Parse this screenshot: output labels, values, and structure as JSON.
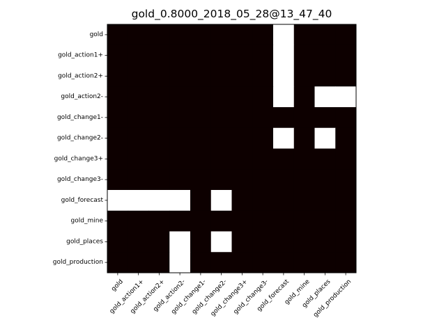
{
  "chart_data": {
    "type": "heatmap",
    "title": "gold_0.8000_2018_05_28@13_47_40",
    "xlabel": "",
    "ylabel": "",
    "x_labels": [
      "gold",
      "gold_action1+",
      "gold_action2+",
      "gold_action2-",
      "gold_change1-",
      "gold_change2-",
      "gold_change3+",
      "gold_change3-",
      "gold_forecast",
      "gold_mine",
      "gold_places",
      "gold_production"
    ],
    "y_labels": [
      "gold",
      "gold_action1+",
      "gold_action2+",
      "gold_action2-",
      "gold_change1-",
      "gold_change2-",
      "gold_change3+",
      "gold_change3-",
      "gold_forecast",
      "gold_mine",
      "gold_places",
      "gold_production"
    ],
    "values": [
      [
        0,
        0,
        0,
        0,
        0,
        0,
        0,
        0,
        1,
        0,
        0,
        0
      ],
      [
        0,
        0,
        0,
        0,
        0,
        0,
        0,
        0,
        1,
        0,
        0,
        0
      ],
      [
        0,
        0,
        0,
        0,
        0,
        0,
        0,
        0,
        1,
        0,
        0,
        0
      ],
      [
        0,
        0,
        0,
        0,
        0,
        0,
        0,
        0,
        1,
        0,
        1,
        1
      ],
      [
        0,
        0,
        0,
        0,
        0,
        0,
        0,
        0,
        0,
        0,
        0,
        0
      ],
      [
        0,
        0,
        0,
        0,
        0,
        0,
        0,
        0,
        1,
        0,
        1,
        0
      ],
      [
        0,
        0,
        0,
        0,
        0,
        0,
        0,
        0,
        0,
        0,
        0,
        0
      ],
      [
        0,
        0,
        0,
        0,
        0,
        0,
        0,
        0,
        0,
        0,
        0,
        0
      ],
      [
        1,
        1,
        1,
        1,
        0,
        1,
        0,
        0,
        0,
        0,
        0,
        0
      ],
      [
        0,
        0,
        0,
        0,
        0,
        0,
        0,
        0,
        0,
        0,
        0,
        0
      ],
      [
        0,
        0,
        0,
        1,
        0,
        1,
        0,
        0,
        0,
        0,
        0,
        0
      ],
      [
        0,
        0,
        0,
        1,
        0,
        0,
        0,
        0,
        0,
        0,
        0,
        0
      ]
    ],
    "colors": {
      "low": "#0d0000",
      "high": "#ffffff"
    },
    "grid": false
  }
}
